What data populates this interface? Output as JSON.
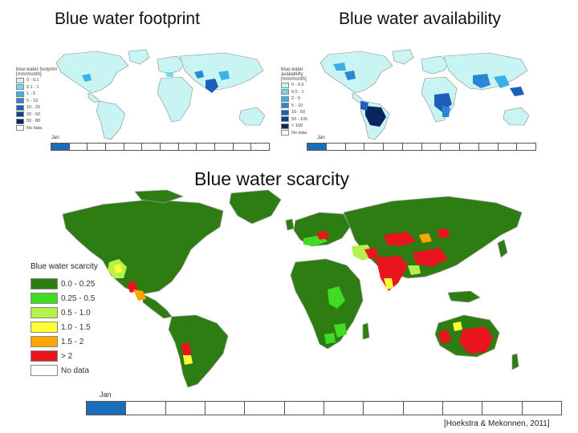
{
  "titles": {
    "footprint": "Blue water footprint",
    "availability": "Blue water availability",
    "scarcity": "Blue water scarcity"
  },
  "footprint_legend": {
    "title": "blue water footprint [mm/month]",
    "items": [
      {
        "label": "0 - 0.1",
        "color": "#c8f4f4"
      },
      {
        "label": "0.1 - 1",
        "color": "#6fdcec"
      },
      {
        "label": "1 - 5",
        "color": "#39b0e6"
      },
      {
        "label": "5 - 10",
        "color": "#2b86d6"
      },
      {
        "label": "10 - 20",
        "color": "#1e5fb8"
      },
      {
        "label": "20 - 50",
        "color": "#123e8c"
      },
      {
        "label": "50 - 80",
        "color": "#0a2660"
      },
      {
        "label": "No data",
        "color": "#ffffff"
      }
    ]
  },
  "availability_legend": {
    "title": "blue water availability [mm/month]",
    "items": [
      {
        "label": "0 - 0.5",
        "color": "#c8f4f4"
      },
      {
        "label": "0.5 - 1",
        "color": "#6fdcec"
      },
      {
        "label": "2 - 5",
        "color": "#39b0e6"
      },
      {
        "label": "5 - 10",
        "color": "#2b86d6"
      },
      {
        "label": "10 - 50",
        "color": "#1e5fb8"
      },
      {
        "label": "50 - 100",
        "color": "#123e8c"
      },
      {
        "label": "> 100",
        "color": "#0a2660"
      },
      {
        "label": "No data",
        "color": "#ffffff"
      }
    ]
  },
  "scarcity_legend": {
    "title": "Blue water scarcity",
    "items": [
      {
        "label": "0.0 - 0.25",
        "color": "#2e7d12"
      },
      {
        "label": "0.25 - 0.5",
        "color": "#3fdc22"
      },
      {
        "label": "0.5 - 1.0",
        "color": "#b6f04a"
      },
      {
        "label": "1.0 - 1.5",
        "color": "#ffff33"
      },
      {
        "label": "1.5 - 2",
        "color": "#ffa500"
      },
      {
        "label": "> 2",
        "color": "#e8141e"
      },
      {
        "label": "No data",
        "color": "#ffffff"
      }
    ]
  },
  "months": {
    "active_label": "Jan",
    "cell_count": 12,
    "active_index": 0,
    "active_color": "#1a6db8"
  },
  "colors": {
    "land_scarcity": "#2e7d12",
    "land_outline": "#9a9a9a",
    "land_light": "#c8f4f4"
  },
  "citation": "[Hoekstra & Mekonnen, 2011]"
}
